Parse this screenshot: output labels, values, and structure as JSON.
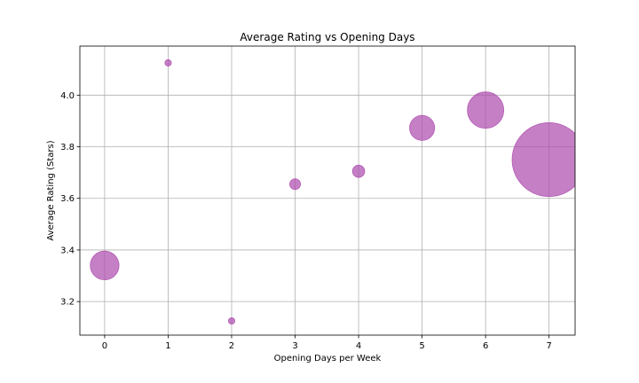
{
  "chart_data": {
    "type": "scatter",
    "title": "Average Rating vs Opening Days",
    "xlabel": "Opening Days per Week",
    "ylabel": "Average Rating (Stars)",
    "xlim": [
      -0.39,
      7.41
    ],
    "ylim": [
      3.07,
      4.19
    ],
    "xticks": [
      0,
      1,
      2,
      3,
      4,
      5,
      6,
      7
    ],
    "yticks": [
      3.2,
      3.4,
      3.6,
      3.8,
      4.0
    ],
    "grid": true,
    "marker_color": "#ad4aad",
    "marker_alpha": 0.7,
    "points": [
      {
        "x": 0,
        "y": 3.34,
        "size": 500
      },
      {
        "x": 1,
        "y": 4.125,
        "size": 25
      },
      {
        "x": 2,
        "y": 3.125,
        "size": 25
      },
      {
        "x": 3,
        "y": 3.655,
        "size": 70
      },
      {
        "x": 4,
        "y": 3.705,
        "size": 90
      },
      {
        "x": 5,
        "y": 3.873,
        "size": 380
      },
      {
        "x": 6,
        "y": 3.942,
        "size": 800
      },
      {
        "x": 7,
        "y": 3.75,
        "size": 3300
      }
    ]
  }
}
